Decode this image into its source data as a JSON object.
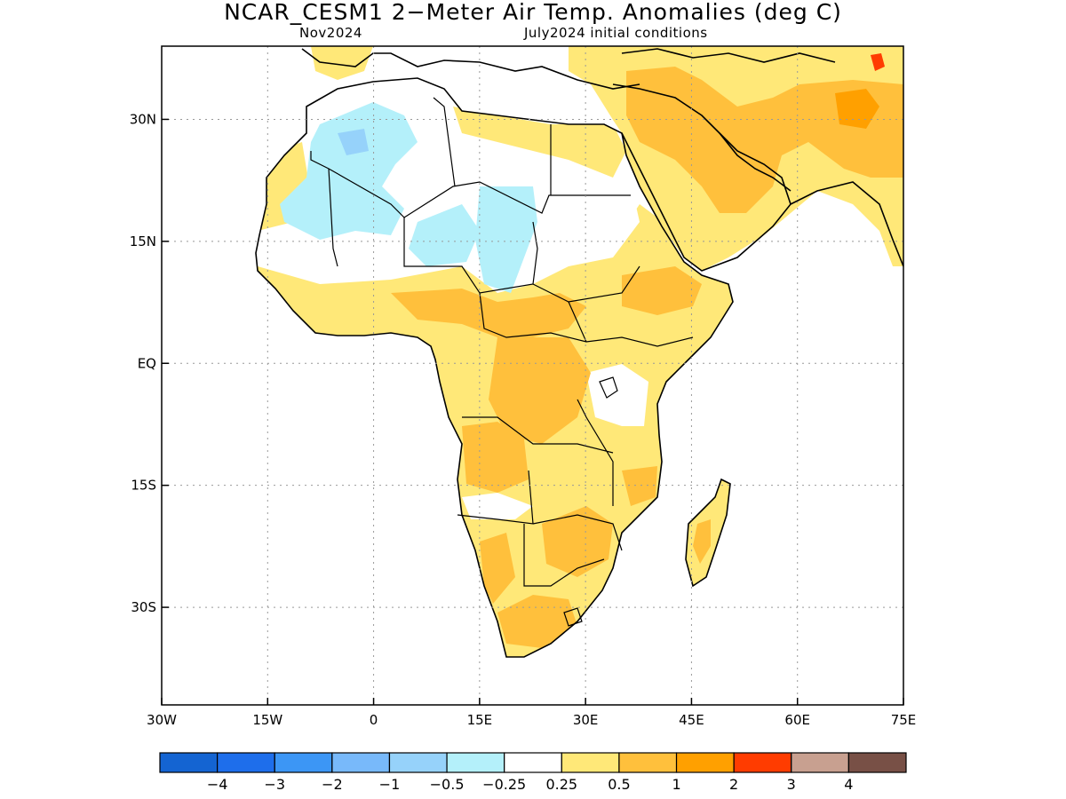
{
  "title": "NCAR_CESM1 2−Meter Air Temp. Anomalies (deg C)",
  "subtitle_left": "Nov2024",
  "subtitle_right": "July2024 initial conditions",
  "axes": {
    "lon_min": -30,
    "lon_max": 75,
    "lat_min": -42,
    "lat_max": 39,
    "x_ticks": [
      {
        "value": -30,
        "label": "30W"
      },
      {
        "value": -15,
        "label": "15W"
      },
      {
        "value": 0,
        "label": "0"
      },
      {
        "value": 15,
        "label": "15E"
      },
      {
        "value": 30,
        "label": "30E"
      },
      {
        "value": 45,
        "label": "45E"
      },
      {
        "value": 60,
        "label": "60E"
      },
      {
        "value": 75,
        "label": "75E"
      }
    ],
    "y_ticks": [
      {
        "value": 30,
        "label": "30N"
      },
      {
        "value": 15,
        "label": "15N"
      },
      {
        "value": 0,
        "label": "EQ"
      },
      {
        "value": -15,
        "label": "15S"
      },
      {
        "value": -30,
        "label": "30S"
      }
    ],
    "grid": "dotted"
  },
  "colorbar": {
    "colors": [
      "#1464d2",
      "#1e6eeb",
      "#3c96f5",
      "#78b9fa",
      "#96d2fa",
      "#b4f0fa",
      "#ffffff",
      "#ffe878",
      "#ffc03c",
      "#ffa000",
      "#ff3c00",
      "#c8a090",
      "#785046"
    ],
    "labels": [
      "−4",
      "−3",
      "−2",
      "−1",
      "−0.5",
      "−0.25",
      "0.25",
      "0.5",
      "1",
      "2",
      "3",
      "4"
    ]
  },
  "anomaly_fill_colors": {
    "light_blue": "#b4f0fa",
    "mid_blue": "#96d2fa",
    "blue": "#78b9fa",
    "light_orange": "#ffe878",
    "orange": "#ffc03c",
    "dark_orange": "#ffa000",
    "red": "#ff3c00"
  }
}
